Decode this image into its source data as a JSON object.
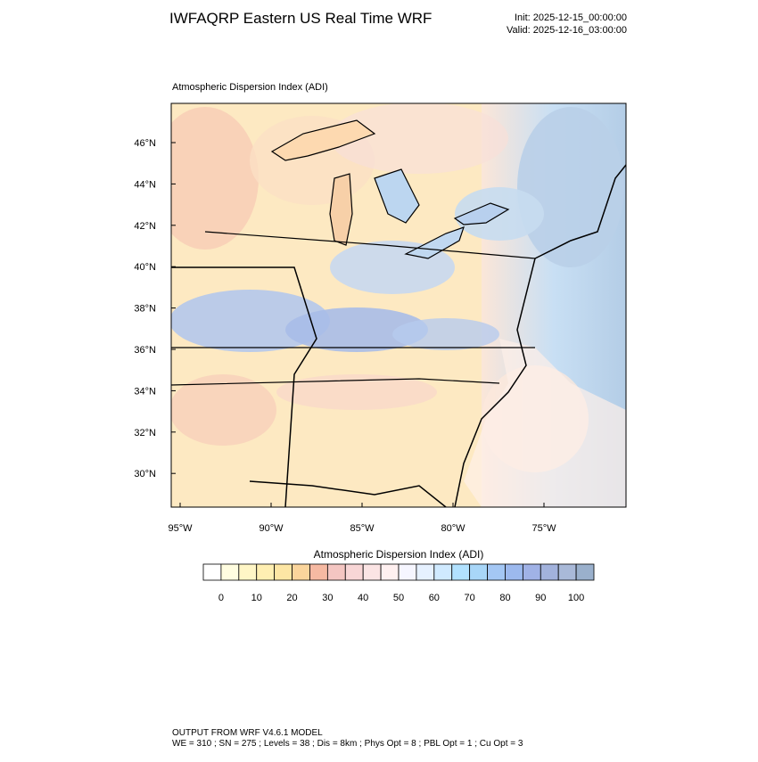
{
  "header": {
    "title": "IWFAQRP Eastern US Real Time WRF",
    "init": "Init: 2025-12-15_00:00:00",
    "valid": "Valid: 2025-12-16_03:00:00"
  },
  "map": {
    "title": "Atmospheric Dispersion Index   (ADI)",
    "lat_labels": [
      "46°N",
      "44°N",
      "42°N",
      "40°N",
      "38°N",
      "36°N",
      "34°N",
      "32°N",
      "30°N"
    ],
    "lon_labels": [
      "95°W",
      "90°W",
      "85°W",
      "80°W",
      "75°W"
    ]
  },
  "colorbar": {
    "title": "Atmospheric Dispersion Index  (ADI)",
    "labels": [
      "0",
      "10",
      "20",
      "30",
      "40",
      "50",
      "60",
      "70",
      "80",
      "90",
      "100"
    ],
    "colors": [
      "#ffffff",
      "#fffde0",
      "#fff6c6",
      "#ffefb2",
      "#fde6a4",
      "#fbd59c",
      "#f6b9a2",
      "#f4c6c2",
      "#f8d6d6",
      "#fbe4e4",
      "#fff0f0",
      "#f6f6ff",
      "#e6f1ff",
      "#d0eaff",
      "#b2e2ff",
      "#a8d6f8",
      "#a4c7f4",
      "#9cb9ee",
      "#a0b2e6",
      "#a2b2dc",
      "#a9b9d8",
      "#9ab0cc"
    ]
  },
  "footer": {
    "line1": "OUTPUT FROM WRF V4.6.1 MODEL",
    "line2": "WE = 310 ; SN = 275 ; Levels = 38 ; Dis = 8km ; Phys Opt = 8 ; PBL Opt = 1 ; Cu Opt = 3"
  }
}
